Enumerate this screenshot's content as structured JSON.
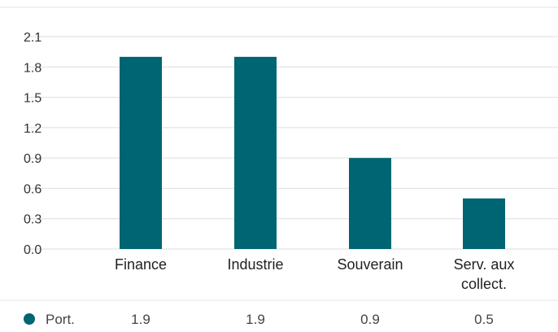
{
  "chart_data": {
    "type": "bar",
    "categories": [
      [
        "Finance"
      ],
      [
        "Industrie"
      ],
      [
        "Souverain"
      ],
      [
        "Serv. aux",
        "collect."
      ]
    ],
    "series": [
      {
        "name": "Port.",
        "values": [
          1.9,
          1.9,
          0.9,
          0.5
        ],
        "color": "#006573"
      }
    ],
    "value_labels": [
      "1.9",
      "1.9",
      "0.9",
      "0.5"
    ],
    "y_ticks": [
      "0.0",
      "0.3",
      "0.6",
      "0.9",
      "1.2",
      "1.5",
      "1.8",
      "2.1"
    ],
    "ylim": [
      0,
      2.1
    ],
    "grid": true,
    "legend": "table-below"
  }
}
